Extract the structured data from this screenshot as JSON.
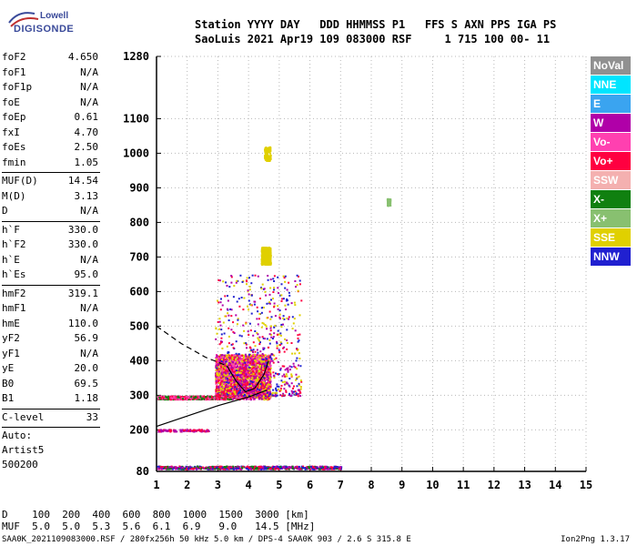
{
  "logo": {
    "line1": "Lowell",
    "line2": "DIGISONDE"
  },
  "header": {
    "line1": "Station YYYY DAY   DDD HHMMSS P1   FFS S AXN PPS IGA PS",
    "line2": "SaoLuis 2021 Apr19 109 083000 RSF     1 715 100 00- 11"
  },
  "params": [
    [
      {
        "k": "foF2",
        "v": "4.650"
      },
      {
        "k": "foF1",
        "v": "N/A"
      },
      {
        "k": "foF1p",
        "v": "N/A"
      },
      {
        "k": "foE",
        "v": "N/A"
      },
      {
        "k": "foEp",
        "v": "0.61"
      },
      {
        "k": "fxI",
        "v": "4.70"
      },
      {
        "k": "foEs",
        "v": "2.50"
      },
      {
        "k": "fmin",
        "v": "1.05"
      }
    ],
    [
      {
        "k": "MUF(D)",
        "v": "14.54"
      },
      {
        "k": "M(D)",
        "v": "3.13"
      },
      {
        "k": "D",
        "v": "N/A"
      }
    ],
    [
      {
        "k": "h`F",
        "v": "330.0"
      },
      {
        "k": "h`F2",
        "v": "330.0"
      },
      {
        "k": "h`E",
        "v": "N/A"
      },
      {
        "k": "h`Es",
        "v": "95.0"
      }
    ],
    [
      {
        "k": "hmF2",
        "v": "319.1"
      },
      {
        "k": "hmF1",
        "v": "N/A"
      },
      {
        "k": "hmE",
        "v": "110.0"
      },
      {
        "k": "yF2",
        "v": "56.9"
      },
      {
        "k": "yF1",
        "v": "N/A"
      },
      {
        "k": "yE",
        "v": "20.0"
      },
      {
        "k": "B0",
        "v": "69.5"
      },
      {
        "k": "B1",
        "v": "1.18"
      }
    ],
    [
      {
        "k": "C-level",
        "v": "33"
      }
    ]
  ],
  "autoscaling": [
    "Auto:",
    "Artist5",
    "500200"
  ],
  "legend": [
    {
      "label": "NoVal",
      "color": "#909090"
    },
    {
      "label": "NNE",
      "color": "#00e5ff"
    },
    {
      "label": "E",
      "color": "#3aa4f0"
    },
    {
      "label": "W",
      "color": "#b000a8"
    },
    {
      "label": "Vo-",
      "color": "#ff40b0"
    },
    {
      "label": "Vo+",
      "color": "#ff0040"
    },
    {
      "label": "SSW",
      "color": "#f4b0b0"
    },
    {
      "label": "X-",
      "color": "#108010"
    },
    {
      "label": "X+",
      "color": "#88c070"
    },
    {
      "label": "SSE",
      "color": "#e0d000"
    },
    {
      "label": "NNW",
      "color": "#2020d0"
    }
  ],
  "dtable": {
    "row1": "D    100  200  400  600  800  1000  1500  3000 [km]",
    "row2": "MUF  5.0  5.0  5.3  5.6  6.1  6.9   9.0   14.5 [MHz]"
  },
  "footer": {
    "left": "SAA0K_2021109083000.RSF / 280fx256h 50 kHz 5.0 km / DPS-4 SAA0K 903 / 2.6 S 315.8 E",
    "right": "Ion2Png 1.3.17"
  },
  "chart_data": {
    "type": "scatter",
    "xlim": [
      1,
      15
    ],
    "ylim": [
      80,
      1280
    ],
    "x_ticks": [
      1,
      2,
      3,
      4,
      5,
      6,
      7,
      8,
      9,
      10,
      11,
      12,
      13,
      14,
      15
    ],
    "y_ticks": [
      80,
      200,
      300,
      400,
      500,
      600,
      700,
      800,
      900,
      1000,
      1100,
      1280
    ],
    "grid": true,
    "clusters": [
      {
        "name": "F-trace main",
        "x_range": [
          2.9,
          4.7
        ],
        "y_range": [
          290,
          420
        ],
        "density": "high",
        "colors": [
          "#ff0040",
          "#ff40b0",
          "#b000a8",
          "#e0d000"
        ]
      },
      {
        "name": "F-trace spread",
        "x_range": [
          2.9,
          5.7
        ],
        "y_range": [
          300,
          650
        ],
        "density": "medium",
        "colors": [
          "#ff0040",
          "#b000a8",
          "#2020d0",
          "#e0d000"
        ]
      },
      {
        "name": "Es 300 km",
        "x_range": [
          1.0,
          3.4
        ],
        "y_range": [
          290,
          300
        ],
        "density": "medium",
        "colors": [
          "#ff0040",
          "#108010",
          "#ff40b0"
        ]
      },
      {
        "name": "Es 200 km",
        "x_range": [
          1.0,
          2.7
        ],
        "y_range": [
          197,
          203
        ],
        "density": "low",
        "colors": [
          "#ff0040",
          "#b000a8"
        ]
      },
      {
        "name": "Es 95 km",
        "x_range": [
          1.0,
          7.0
        ],
        "y_range": [
          88,
          97
        ],
        "density": "medium",
        "colors": [
          "#ff0040",
          "#108010",
          "#b000a8",
          "#2020d0"
        ]
      },
      {
        "name": "SSE high",
        "x_range": [
          4.4,
          4.7
        ],
        "y_range": [
          680,
          730
        ],
        "density": "medium",
        "colors": [
          "#e0d000"
        ]
      },
      {
        "name": "SSE upper",
        "x_range": [
          4.5,
          4.7
        ],
        "y_range": [
          980,
          1020
        ],
        "density": "low",
        "colors": [
          "#e0d000"
        ]
      },
      {
        "name": "isolated",
        "x_range": [
          8.5,
          8.6
        ],
        "y_range": [
          850,
          870
        ],
        "density": "low",
        "colors": [
          "#88c070"
        ]
      }
    ],
    "lines": [
      {
        "name": "profile-solid",
        "points": [
          [
            1,
            210
          ],
          [
            2,
            240
          ],
          [
            3,
            270
          ],
          [
            4,
            295
          ],
          [
            4.6,
            315
          ]
        ],
        "style": "solid"
      },
      {
        "name": "profile-dashed",
        "points": [
          [
            1,
            500
          ],
          [
            1.8,
            450
          ],
          [
            2.6,
            410
          ],
          [
            3.3,
            385
          ]
        ],
        "style": "dashed"
      },
      {
        "name": "trace-fit",
        "points": [
          [
            3.3,
            385
          ],
          [
            3.6,
            340
          ],
          [
            3.9,
            310
          ],
          [
            4.2,
            320
          ],
          [
            4.5,
            360
          ],
          [
            4.65,
            400
          ]
        ],
        "style": "solid"
      }
    ]
  }
}
